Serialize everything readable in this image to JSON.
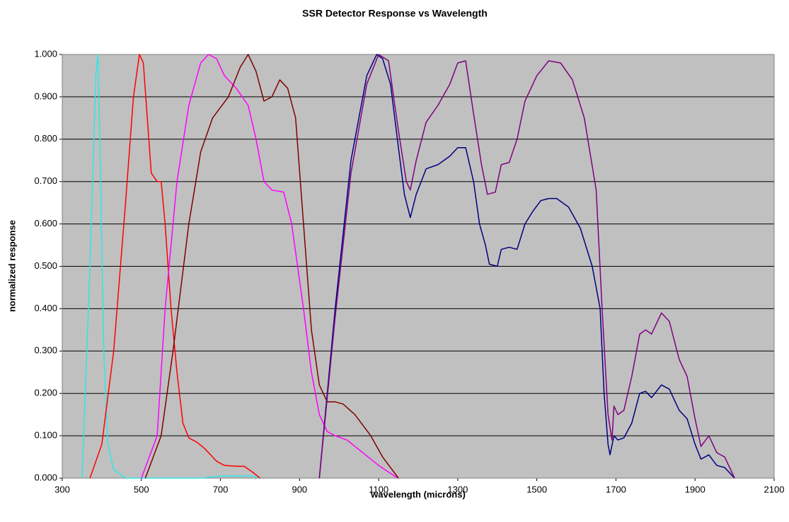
{
  "chart_data": {
    "type": "line",
    "title": "SSR Detector Response vs Wavelength",
    "xlabel": "wavelength (microns)",
    "ylabel": "normalized response",
    "xlim": [
      300,
      2100
    ],
    "xticks": [
      300,
      500,
      700,
      900,
      1100,
      1300,
      1500,
      1700,
      1900,
      2100
    ],
    "ylim": [
      0,
      1
    ],
    "yticks": [
      {
        "value": 0,
        "label": "0.000"
      },
      {
        "value": 0.1,
        "label": "0.100"
      },
      {
        "value": 0.2,
        "label": "0.200"
      },
      {
        "value": 0.3,
        "label": "0.300"
      },
      {
        "value": 0.4,
        "label": "0.400"
      },
      {
        "value": 0.5,
        "label": "0.500"
      },
      {
        "value": 0.6,
        "label": "0.600"
      },
      {
        "value": 0.7,
        "label": "0.700"
      },
      {
        "value": 0.8,
        "label": "0.800"
      },
      {
        "value": 0.9,
        "label": "0.900"
      },
      {
        "value": 1,
        "label": "1.000"
      }
    ],
    "grid": true,
    "background": "#c0c0c0",
    "series": [
      {
        "color": "#33e6e6",
        "x": [
          350,
          370,
          385,
          390,
          395,
          405,
          415,
          430,
          460,
          650,
          700,
          780,
          800
        ],
        "values": [
          0,
          0.5,
          0.95,
          1.0,
          0.8,
          0.3,
          0.08,
          0.02,
          0,
          0,
          0.005,
          0.005,
          0
        ]
      },
      {
        "color": "#ff0000",
        "x": [
          370,
          400,
          430,
          460,
          480,
          495,
          505,
          515,
          525,
          540,
          550,
          560,
          575,
          590,
          605,
          620,
          640,
          660,
          690,
          710,
          740,
          760,
          780,
          800
        ],
        "values": [
          0,
          0.08,
          0.3,
          0.65,
          0.9,
          1.0,
          0.98,
          0.85,
          0.72,
          0.7,
          0.7,
          0.6,
          0.4,
          0.25,
          0.13,
          0.095,
          0.085,
          0.07,
          0.04,
          0.03,
          0.028,
          0.028,
          0.015,
          0
        ]
      },
      {
        "color": "#ff00ff",
        "x": [
          500,
          540,
          560,
          590,
          620,
          650,
          670,
          690,
          710,
          740,
          770,
          790,
          810,
          830,
          860,
          880,
          910,
          930,
          950,
          970,
          990,
          1020,
          1060,
          1100,
          1140,
          1150
        ],
        "values": [
          0,
          0.1,
          0.4,
          0.7,
          0.88,
          0.98,
          1.0,
          0.99,
          0.95,
          0.92,
          0.88,
          0.8,
          0.7,
          0.68,
          0.675,
          0.6,
          0.4,
          0.25,
          0.15,
          0.11,
          0.1,
          0.09,
          0.06,
          0.03,
          0.005,
          0
        ]
      },
      {
        "color": "#800000",
        "x": [
          510,
          550,
          580,
          620,
          650,
          680,
          720,
          750,
          770,
          790,
          810,
          830,
          850,
          870,
          890,
          910,
          930,
          950,
          970,
          990,
          1010,
          1040,
          1080,
          1110,
          1150
        ],
        "values": [
          0,
          0.1,
          0.3,
          0.6,
          0.77,
          0.85,
          0.9,
          0.97,
          1.0,
          0.96,
          0.89,
          0.9,
          0.94,
          0.92,
          0.85,
          0.6,
          0.35,
          0.22,
          0.18,
          0.18,
          0.175,
          0.15,
          0.1,
          0.05,
          0
        ]
      },
      {
        "color": "#000080",
        "x": [
          950,
          990,
          1030,
          1070,
          1095,
          1110,
          1130,
          1150,
          1165,
          1180,
          1195,
          1220,
          1250,
          1280,
          1300,
          1320,
          1340,
          1355,
          1370,
          1380,
          1400,
          1410,
          1430,
          1450,
          1470,
          1490,
          1510,
          1530,
          1550,
          1580,
          1610,
          1640,
          1660,
          1670,
          1680,
          1685,
          1695,
          1705,
          1720,
          1740,
          1760,
          1775,
          1790,
          1815,
          1835,
          1860,
          1880,
          1900,
          1915,
          1935,
          1955,
          1975,
          2000
        ],
        "values": [
          0,
          0.4,
          0.75,
          0.95,
          1.0,
          0.99,
          0.93,
          0.78,
          0.67,
          0.615,
          0.67,
          0.73,
          0.74,
          0.76,
          0.78,
          0.78,
          0.7,
          0.6,
          0.55,
          0.505,
          0.5,
          0.54,
          0.545,
          0.54,
          0.6,
          0.63,
          0.655,
          0.66,
          0.66,
          0.64,
          0.59,
          0.5,
          0.4,
          0.2,
          0.08,
          0.055,
          0.1,
          0.09,
          0.095,
          0.13,
          0.2,
          0.205,
          0.19,
          0.22,
          0.21,
          0.16,
          0.14,
          0.08,
          0.045,
          0.055,
          0.03,
          0.025,
          0
        ]
      },
      {
        "color": "#800080",
        "x": [
          950,
          990,
          1030,
          1070,
          1100,
          1125,
          1150,
          1170,
          1180,
          1195,
          1220,
          1250,
          1280,
          1300,
          1320,
          1340,
          1360,
          1375,
          1395,
          1410,
          1430,
          1450,
          1470,
          1500,
          1530,
          1560,
          1590,
          1620,
          1650,
          1665,
          1680,
          1690,
          1695,
          1705,
          1720,
          1740,
          1760,
          1775,
          1790,
          1815,
          1835,
          1860,
          1880,
          1900,
          1915,
          1935,
          1955,
          1975,
          2000
        ],
        "values": [
          0,
          0.38,
          0.72,
          0.93,
          1.0,
          0.985,
          0.82,
          0.7,
          0.68,
          0.75,
          0.84,
          0.88,
          0.93,
          0.98,
          0.985,
          0.86,
          0.74,
          0.67,
          0.675,
          0.74,
          0.745,
          0.8,
          0.89,
          0.95,
          0.985,
          0.98,
          0.94,
          0.85,
          0.68,
          0.4,
          0.15,
          0.09,
          0.17,
          0.15,
          0.16,
          0.24,
          0.34,
          0.35,
          0.34,
          0.39,
          0.37,
          0.28,
          0.24,
          0.14,
          0.075,
          0.1,
          0.06,
          0.05,
          0
        ]
      }
    ]
  }
}
